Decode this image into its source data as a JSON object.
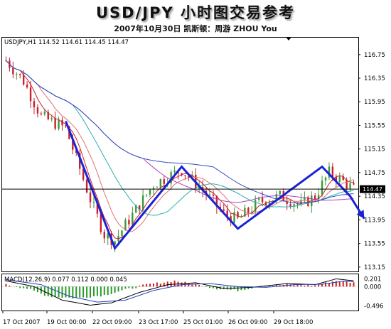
{
  "header": {
    "title": "USD/JPY 小时图交易参考",
    "subtitle": "2007年10月30日  凯斯顿：周游 ZHOU You"
  },
  "chart_data": {
    "type": "candlestick",
    "symbol_info": "USDJPY,H1  114.52 114.61 114.45 114.47",
    "last_price": 114.47,
    "last_price_label": "114.47",
    "y_ticks": [
      "116.75",
      "116.35",
      "115.95",
      "115.55",
      "115.15",
      "114.75",
      "114.35",
      "113.95",
      "113.55",
      "113.15"
    ],
    "ylim": [
      113.1,
      117.0
    ],
    "x_labels": [
      "17 Oct 2007",
      "19 Oct 00:00",
      "22 Oct 09:00",
      "23 Oct 17:00",
      "25 Oct 01:00",
      "26 Oct 09:00",
      "29 Oct 18:00"
    ],
    "zigzag": {
      "color": "#1a23d4",
      "points": [
        [
          17,
          115.62
        ],
        [
          31,
          113.47
        ],
        [
          50,
          114.85
        ],
        [
          66,
          113.8
        ],
        [
          90,
          114.85
        ],
        [
          98,
          114.35
        ]
      ],
      "arrow_end": [
        102,
        113.97
      ]
    },
    "candles": {
      "count": 100,
      "anchors": [
        [
          0,
          116.65
        ],
        [
          5,
          116.3
        ],
        [
          10,
          115.7
        ],
        [
          17,
          115.5
        ],
        [
          24,
          114.3
        ],
        [
          28,
          113.7
        ],
        [
          31,
          113.6
        ],
        [
          35,
          113.95
        ],
        [
          42,
          114.55
        ],
        [
          50,
          114.8
        ],
        [
          56,
          114.45
        ],
        [
          62,
          114.05
        ],
        [
          66,
          113.95
        ],
        [
          72,
          114.25
        ],
        [
          78,
          114.35
        ],
        [
          84,
          114.2
        ],
        [
          88,
          114.35
        ],
        [
          92,
          114.75
        ],
        [
          96,
          114.6
        ],
        [
          99,
          114.47
        ]
      ]
    },
    "moving_averages": [
      {
        "color": "#c8202a",
        "period": 5
      },
      {
        "color": "#e07070",
        "period": 10
      },
      {
        "color": "#2bb0b0",
        "period": 20
      },
      {
        "color": "#b040c0",
        "period": 40
      },
      {
        "color": "#3050c0",
        "period": 60
      }
    ],
    "macd": {
      "label": "MACD(12,26,9) 0.077 0.112 0.000 0.045",
      "y_ticks": [
        "0.201",
        "0.000",
        "-0.496"
      ],
      "ylim": [
        -0.6,
        0.3
      ],
      "histogram_anchors": [
        [
          0,
          0.05
        ],
        [
          6,
          -0.05
        ],
        [
          12,
          -0.25
        ],
        [
          20,
          -0.3
        ],
        [
          28,
          -0.22
        ],
        [
          34,
          -0.08
        ],
        [
          40,
          0.05
        ],
        [
          48,
          0.15
        ],
        [
          54,
          0.05
        ],
        [
          60,
          -0.05
        ],
        [
          66,
          -0.1
        ],
        [
          72,
          0.0
        ],
        [
          80,
          0.05
        ],
        [
          88,
          0.03
        ],
        [
          94,
          0.15
        ],
        [
          99,
          0.1
        ]
      ],
      "line_anchors": [
        [
          0,
          0.15
        ],
        [
          8,
          0.0
        ],
        [
          16,
          -0.35
        ],
        [
          24,
          -0.48
        ],
        [
          30,
          -0.42
        ],
        [
          38,
          -0.15
        ],
        [
          46,
          0.05
        ],
        [
          54,
          0.1
        ],
        [
          62,
          -0.05
        ],
        [
          70,
          -0.02
        ],
        [
          80,
          0.08
        ],
        [
          88,
          0.05
        ],
        [
          94,
          0.2
        ],
        [
          99,
          0.15
        ]
      ],
      "signal_anchors": [
        [
          0,
          0.18
        ],
        [
          10,
          0.05
        ],
        [
          18,
          -0.25
        ],
        [
          26,
          -0.4
        ],
        [
          34,
          -0.35
        ],
        [
          42,
          -0.1
        ],
        [
          50,
          0.05
        ],
        [
          58,
          0.08
        ],
        [
          66,
          0.0
        ],
        [
          74,
          -0.02
        ],
        [
          82,
          0.05
        ],
        [
          90,
          0.06
        ],
        [
          96,
          0.14
        ],
        [
          99,
          0.13
        ]
      ]
    }
  }
}
